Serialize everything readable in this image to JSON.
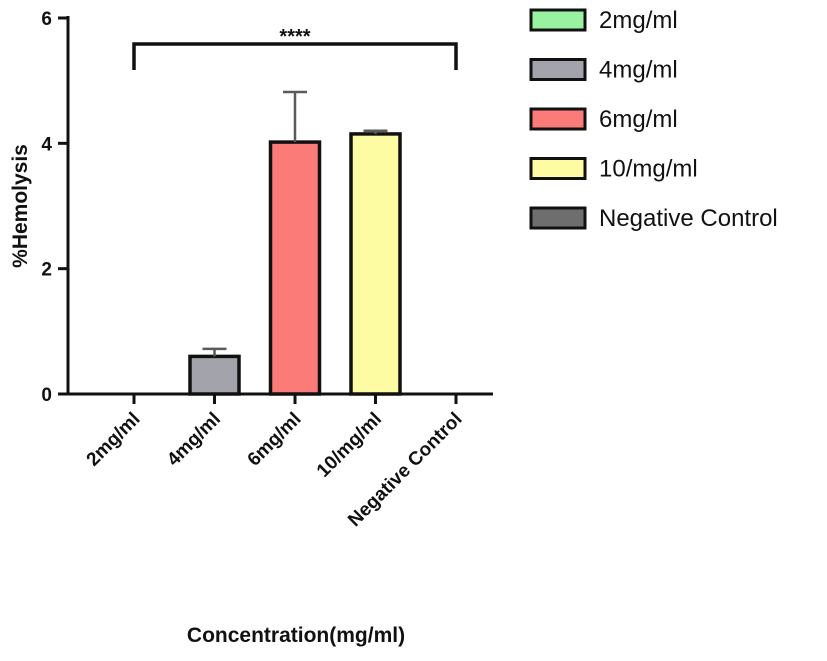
{
  "chart_data": {
    "type": "bar",
    "title": "",
    "xlabel": "Concentration(mg/ml)",
    "ylabel": "%Hemolysis",
    "ylim": [
      0,
      6
    ],
    "yticks": [
      "0",
      "2",
      "4",
      "6"
    ],
    "categories": [
      "2mg/ml",
      "4mg/ml",
      "6mg/ml",
      "10/mg/ml",
      "Negative Control"
    ],
    "values": [
      0,
      0.6,
      4.02,
      4.15,
      0
    ],
    "errors": [
      0,
      0.12,
      0.8,
      0.05,
      0
    ],
    "colors": [
      "#99f2a0",
      "#a3a3ab",
      "#fb7b79",
      "#fdfca2",
      "#6e6e6e"
    ],
    "legend": {
      "placement": "top-right",
      "entries": [
        "2mg/ml",
        "4mg/ml",
        "6mg/ml",
        "10/mg/ml",
        "Negative Control"
      ]
    },
    "significance": {
      "label": "****",
      "from": "2mg/ml",
      "to": "Negative Control"
    },
    "grid": false
  }
}
